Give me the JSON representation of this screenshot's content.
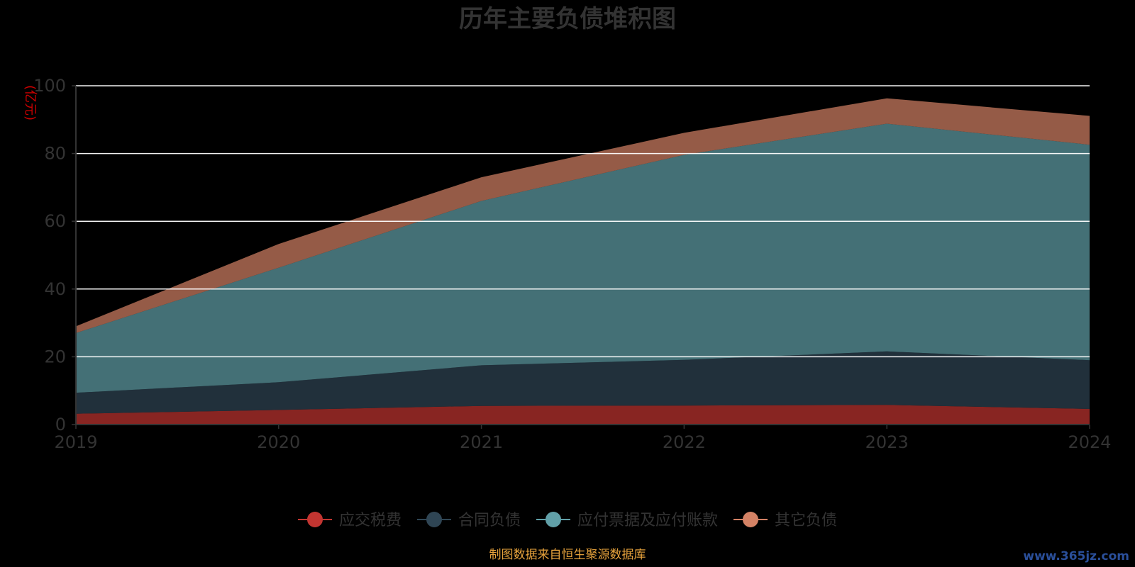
{
  "chart_data": {
    "type": "area",
    "stacked": true,
    "title": "历年主要负债堆积图",
    "unit_label": "(亿元)",
    "x": [
      "2019",
      "2020",
      "2021",
      "2022",
      "2023",
      "2024"
    ],
    "ylim": [
      0,
      100
    ],
    "yticks": [
      0,
      20,
      40,
      60,
      80,
      100
    ],
    "grid": true,
    "legend_position": "bottom",
    "series": [
      {
        "name": "应交税费",
        "color": "#c23531",
        "values": [
          3.2,
          4.3,
          5.5,
          5.6,
          5.8,
          4.6
        ]
      },
      {
        "name": "合同负债",
        "color": "#2f4554",
        "values": [
          6.2,
          8.2,
          12.0,
          13.5,
          15.8,
          14.4
        ]
      },
      {
        "name": "应付票据及应付账款",
        "color": "#61a0a8",
        "values": [
          17.6,
          33.8,
          48.5,
          60.5,
          67.2,
          63.6
        ]
      },
      {
        "name": "其它负债",
        "color": "#d48265",
        "values": [
          2.0,
          7.0,
          7.0,
          6.5,
          7.5,
          8.5
        ]
      }
    ],
    "colors": {
      "background": "#000000",
      "title": "#333333",
      "axis_text": "#333333",
      "axis_line": "#333333",
      "grid": "#ffffff",
      "unit_label": "#cc0000"
    }
  },
  "footer": {
    "note": "制图数据来自恒生聚源数据库",
    "note_color": "#e6a23c",
    "watermark": "www.365jz.com",
    "watermark_color": "#2a4f9a"
  }
}
